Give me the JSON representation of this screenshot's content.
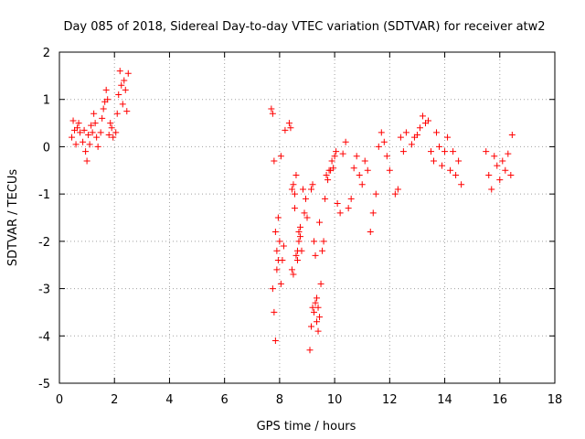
{
  "chart_data": {
    "type": "scatter",
    "title": "Day 085 of 2018, Sidereal Day-to-day VTEC variation (SDTVAR) for receiver atw2",
    "xlabel": "GPS time / hours",
    "ylabel": "SDTVAR / TECUs",
    "xlim": [
      0,
      18
    ],
    "ylim": [
      -5,
      2
    ],
    "xticks": [
      0,
      2,
      4,
      6,
      8,
      10,
      12,
      14,
      16,
      18
    ],
    "yticks": [
      -5,
      -4,
      -3,
      -2,
      -1,
      0,
      1,
      2
    ],
    "grid": true,
    "marker": "+",
    "color": "#ff0000",
    "series": [
      {
        "name": "SDTVAR",
        "x": [
          0.45,
          0.5,
          0.55,
          0.6,
          0.65,
          0.7,
          0.75,
          0.85,
          0.9,
          0.95,
          1.0,
          1.05,
          1.1,
          1.15,
          1.2,
          1.25,
          1.3,
          1.35,
          1.4,
          1.5,
          1.55,
          1.6,
          1.65,
          1.7,
          1.75,
          1.8,
          1.85,
          1.9,
          1.95,
          2.05,
          2.1,
          2.15,
          2.2,
          2.25,
          2.3,
          2.35,
          2.4,
          2.45,
          2.5,
          7.7,
          7.75,
          7.8,
          7.85,
          7.9,
          7.95,
          8.0,
          8.05,
          8.1,
          8.15,
          8.2,
          7.75,
          7.8,
          7.85,
          7.9,
          7.95,
          8.05,
          8.35,
          8.4,
          8.45,
          8.5,
          8.55,
          8.6,
          8.65,
          8.7,
          8.75,
          8.8,
          8.85,
          8.9,
          8.95,
          9.0,
          8.45,
          8.5,
          8.55,
          8.6,
          8.65,
          8.7,
          8.75,
          9.15,
          9.2,
          9.25,
          9.3,
          9.35,
          9.4,
          9.45,
          9.5,
          9.55,
          9.6,
          9.65,
          9.7,
          9.75,
          9.8,
          9.85,
          9.9,
          9.95,
          10.0,
          10.05,
          9.1,
          9.15,
          9.2,
          9.25,
          9.3,
          9.35,
          9.4,
          9.45,
          10.1,
          10.2,
          10.3,
          10.4,
          10.5,
          10.6,
          10.7,
          10.8,
          10.9,
          11.0,
          11.1,
          11.2,
          11.3,
          11.4,
          11.5,
          11.6,
          11.7,
          11.8,
          11.9,
          12.0,
          12.2,
          12.3,
          12.4,
          12.5,
          12.6,
          12.8,
          12.9,
          13.0,
          13.1,
          13.2,
          13.3,
          13.4,
          13.5,
          13.6,
          13.7,
          13.8,
          13.9,
          14.0,
          14.1,
          14.2,
          14.3,
          14.4,
          14.5,
          14.6,
          15.5,
          15.6,
          15.7,
          15.8,
          15.9,
          16.0,
          16.1,
          16.2,
          16.3,
          16.4,
          16.45
        ],
        "values": [
          0.2,
          0.55,
          0.35,
          0.05,
          0.4,
          0.5,
          0.3,
          0.1,
          0.35,
          -0.1,
          -0.3,
          0.25,
          0.05,
          0.45,
          0.3,
          0.7,
          0.5,
          0.2,
          0.0,
          0.3,
          0.6,
          0.8,
          0.95,
          1.2,
          1.0,
          0.25,
          0.5,
          0.4,
          0.2,
          0.3,
          0.7,
          1.1,
          1.6,
          1.3,
          0.9,
          1.4,
          1.2,
          0.75,
          1.55,
          0.8,
          0.7,
          -0.3,
          -1.8,
          -2.2,
          -1.5,
          -2.0,
          -0.2,
          -2.4,
          -2.1,
          0.35,
          -3.0,
          -3.5,
          -4.1,
          -2.6,
          -2.4,
          -2.9,
          0.5,
          0.4,
          -2.6,
          -2.7,
          -1.3,
          -0.6,
          -2.4,
          -1.8,
          -1.9,
          -2.2,
          -0.9,
          -1.4,
          -1.1,
          -1.5,
          -0.9,
          -0.8,
          -1.0,
          -2.3,
          -2.2,
          -2.0,
          -1.7,
          -0.9,
          -0.8,
          -2.0,
          -2.3,
          -3.2,
          -3.4,
          -3.6,
          -2.9,
          -2.2,
          -2.0,
          -1.1,
          -0.6,
          -0.7,
          -0.5,
          -0.5,
          -0.3,
          -0.45,
          -0.2,
          -0.1,
          -4.3,
          -3.8,
          -3.4,
          -3.5,
          -3.3,
          -3.7,
          -3.9,
          -1.6,
          -1.2,
          -1.4,
          -0.15,
          0.1,
          -1.3,
          -1.1,
          -0.45,
          -0.2,
          -0.6,
          -0.8,
          -0.3,
          -0.5,
          -1.8,
          -1.4,
          -1.0,
          0.0,
          0.3,
          0.1,
          -0.2,
          -0.5,
          -1.0,
          -0.9,
          0.2,
          -0.1,
          0.3,
          0.05,
          0.2,
          0.25,
          0.4,
          0.65,
          0.5,
          0.55,
          -0.1,
          -0.3,
          0.3,
          0.0,
          -0.4,
          -0.1,
          0.2,
          -0.5,
          -0.1,
          -0.6,
          -0.3,
          -0.8,
          -0.1,
          -0.6,
          -0.9,
          -0.2,
          -0.4,
          -0.7,
          -0.3,
          -0.5,
          -0.15,
          -0.6,
          0.25
        ]
      }
    ]
  }
}
